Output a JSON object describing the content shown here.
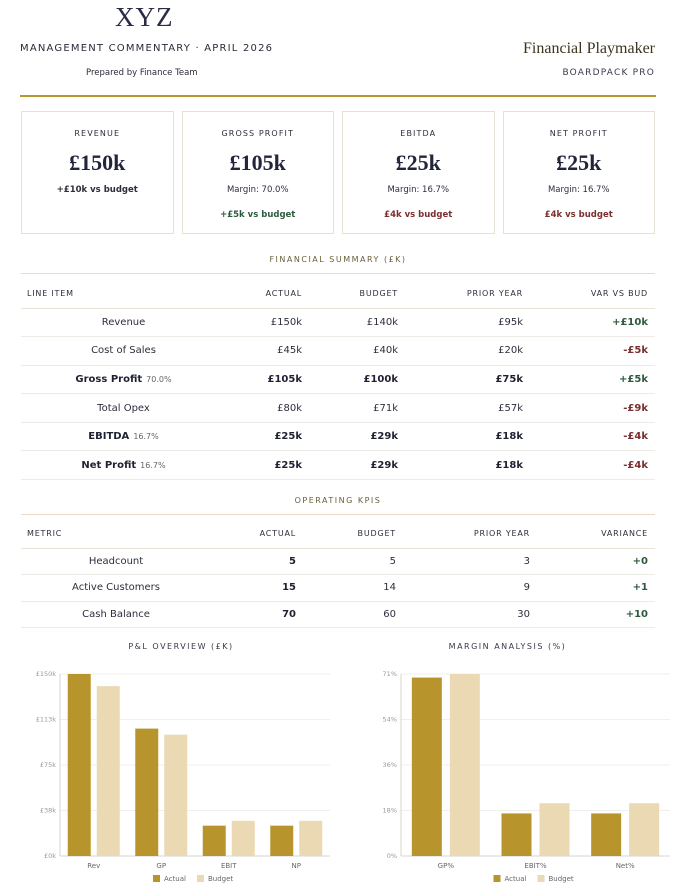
{
  "header": {
    "logo": "XYZ",
    "title": "MANAGEMENT COMMENTARY · APRIL 2026",
    "prepared_by": "Prepared by Finance Team",
    "brand": "Financial Playmaker",
    "brand_sub": "BOARDPACK PRO"
  },
  "cards": [
    {
      "label": "REVENUE",
      "value": "£150k",
      "line1": "+£10k vs budget",
      "line1_class": "pos",
      "line2": "",
      "line2_class": ""
    },
    {
      "label": "GROSS PROFIT",
      "value": "£105k",
      "line1": "Margin: 70.0%",
      "line1_class": "",
      "line2": "+£5k vs budget",
      "line2_class": "pos"
    },
    {
      "label": "EBITDA",
      "value": "£25k",
      "line1": "Margin: 16.7%",
      "line1_class": "",
      "line2": "£4k vs budget",
      "line2_class": "neg"
    },
    {
      "label": "NET PROFIT",
      "value": "£25k",
      "line1": "Margin: 16.7%",
      "line1_class": "",
      "line2": "£4k vs budget",
      "line2_class": "neg"
    }
  ],
  "financial_summary": {
    "title": "FINANCIAL SUMMARY (£K)",
    "columns": [
      "LINE ITEM",
      "ACTUAL",
      "BUDGET",
      "PRIOR YEAR",
      "VAR VS BUD"
    ],
    "rows": [
      {
        "item": "Revenue",
        "margin": "",
        "actual": "£150k",
        "budget": "£140k",
        "prior": "£95k",
        "var": "+£10k",
        "var_class": "pos",
        "bold": false
      },
      {
        "item": "Cost of Sales",
        "margin": "",
        "actual": "£45k",
        "budget": "£40k",
        "prior": "£20k",
        "var": "-£5k",
        "var_class": "neg",
        "bold": false
      },
      {
        "item": "Gross Profit",
        "margin": "70.0%",
        "actual": "£105k",
        "budget": "£100k",
        "prior": "£75k",
        "var": "+£5k",
        "var_class": "pos",
        "bold": true
      },
      {
        "item": "Total Opex",
        "margin": "",
        "actual": "£80k",
        "budget": "£71k",
        "prior": "£57k",
        "var": "-£9k",
        "var_class": "neg",
        "bold": false
      },
      {
        "item": "EBITDA",
        "margin": "16.7%",
        "actual": "£25k",
        "budget": "£29k",
        "prior": "£18k",
        "var": "-£4k",
        "var_class": "neg",
        "bold": true
      },
      {
        "item": "Net Profit",
        "margin": "16.7%",
        "actual": "£25k",
        "budget": "£29k",
        "prior": "£18k",
        "var": "-£4k",
        "var_class": "neg",
        "bold": true
      }
    ]
  },
  "operating_kpis": {
    "title": "OPERATING KPIS",
    "columns": [
      "METRIC",
      "ACTUAL",
      "BUDGET",
      "PRIOR YEAR",
      "VARIANCE"
    ],
    "rows": [
      {
        "metric": "Headcount",
        "actual": "5",
        "budget": "5",
        "prior": "3",
        "var": "+0"
      },
      {
        "metric": "Active Customers",
        "actual": "15",
        "budget": "14",
        "prior": "9",
        "var": "+1"
      },
      {
        "metric": "Cash Balance",
        "actual": "70",
        "budget": "60",
        "prior": "30",
        "var": "+10"
      }
    ]
  },
  "colors": {
    "actual": "#b8952c",
    "budget": "#ead9b2",
    "accent": "#b8982e"
  },
  "chart_data": [
    {
      "type": "bar",
      "title": "P&L OVERVIEW (£K)",
      "categories": [
        "Rev",
        "GP",
        "EBIT",
        "NP"
      ],
      "series": [
        {
          "name": "Actual",
          "values": [
            150,
            105,
            25,
            25
          ]
        },
        {
          "name": "Budget",
          "values": [
            140,
            100,
            29,
            29
          ]
        }
      ],
      "yticks": [
        "£0k",
        "£38k",
        "£75k",
        "£113k",
        "£150k"
      ],
      "ylim": [
        0,
        150
      ],
      "legend": "bottom-center"
    },
    {
      "type": "bar",
      "title": "MARGIN ANALYSIS (%)",
      "categories": [
        "GP%",
        "EBIT%",
        "Net%"
      ],
      "series": [
        {
          "name": "Actual",
          "values": [
            70,
            16.7,
            16.7
          ]
        },
        {
          "name": "Budget",
          "values": [
            71.4,
            20.7,
            20.7
          ]
        }
      ],
      "yticks": [
        "0%",
        "18%",
        "36%",
        "54%",
        "71%"
      ],
      "ylim": [
        0,
        71.4
      ],
      "legend": "bottom-center"
    }
  ]
}
